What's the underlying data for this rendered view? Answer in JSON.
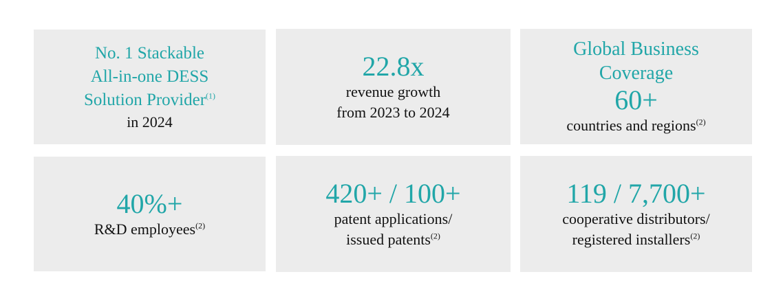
{
  "colors": {
    "accent": "#21a6a8",
    "card_background": "#ececec",
    "text": "#111111"
  },
  "cards": [
    {
      "heading_lines": [
        "No. 1 Stackable",
        "All-in-one DESS",
        "Solution Provider"
      ],
      "heading_footnote": "(1)",
      "sub_lines": [
        "in 2024"
      ]
    },
    {
      "big_value": "22.8x",
      "sub_lines": [
        "revenue growth",
        "from 2023 to 2024"
      ]
    },
    {
      "heading_lines": [
        "Global Business",
        "Coverage"
      ],
      "big_value": "60+",
      "sub_lines": [
        "countries and regions"
      ],
      "sub_footnote": "(2)"
    },
    {
      "big_value": "40%+",
      "sub_lines": [
        "R&D employees"
      ],
      "sub_footnote": "(2)"
    },
    {
      "big_value": "420+ / 100+",
      "sub_lines": [
        "patent applications/",
        "issued patents"
      ],
      "sub_footnote": "(2)"
    },
    {
      "big_value": "119 / 7,700+",
      "sub_lines": [
        "cooperative distributors/",
        "registered installers"
      ],
      "sub_footnote": "(2)"
    }
  ]
}
